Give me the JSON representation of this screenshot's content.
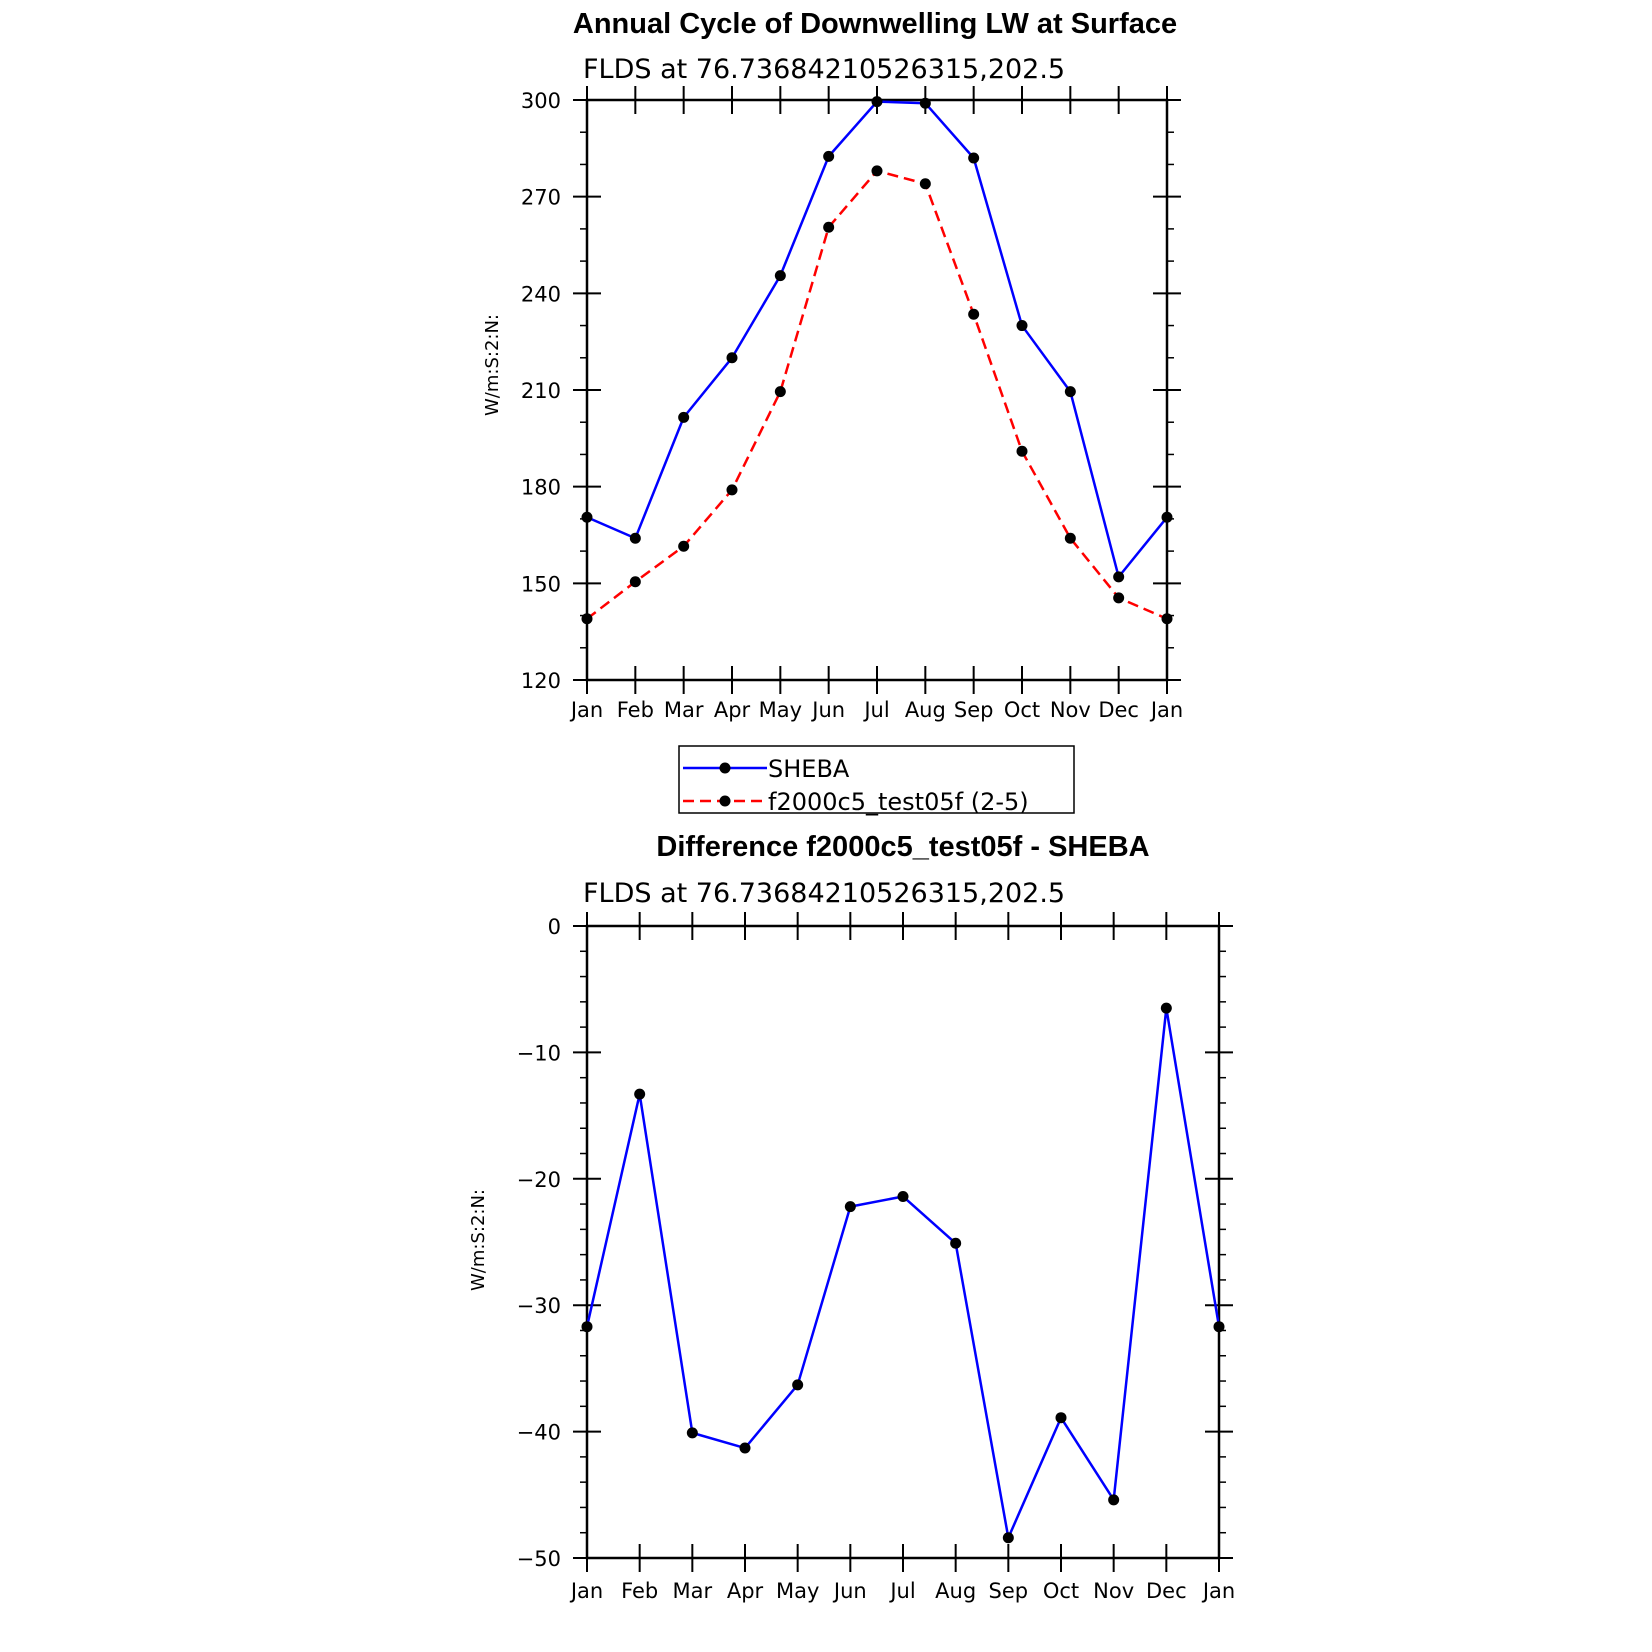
{
  "chart_data": [
    {
      "type": "line",
      "title": "Annual Cycle of Downwelling LW at Surface",
      "subtitle": "FLDS at 76.73684210526315,202.5",
      "ylabel": "W/m:S:2:N:",
      "categories": [
        "Jan",
        "Feb",
        "Mar",
        "Apr",
        "May",
        "Jun",
        "Jul",
        "Aug",
        "Sep",
        "Oct",
        "Nov",
        "Dec",
        "Jan"
      ],
      "ylim": [
        120,
        300
      ],
      "yticks": [
        120,
        150,
        180,
        210,
        240,
        270,
        300
      ],
      "ytick_labels": [
        "120",
        "150",
        "180",
        "210",
        "240",
        "270",
        "300"
      ],
      "series": [
        {
          "name": "SHEBA",
          "color": "#0000ff",
          "dash": "solid",
          "values": [
            170.5,
            164.0,
            201.5,
            220.0,
            245.5,
            282.5,
            299.5,
            299.0,
            282.0,
            230.0,
            209.5,
            152.0,
            170.5
          ]
        },
        {
          "name": "f2000c5_test05f (2-5)",
          "color": "#ff0000",
          "dash": "dashed",
          "values": [
            139.0,
            150.5,
            161.5,
            179.0,
            209.5,
            260.5,
            278.0,
            274.0,
            233.5,
            191.0,
            164.0,
            145.5,
            139.0
          ]
        }
      ],
      "legend": "below"
    },
    {
      "type": "line",
      "title": "Difference f2000c5_test05f - SHEBA",
      "subtitle": "FLDS at 76.73684210526315,202.5",
      "ylabel": "W/m:S:2:N:",
      "categories": [
        "Jan",
        "Feb",
        "Mar",
        "Apr",
        "May",
        "Jun",
        "Jul",
        "Aug",
        "Sep",
        "Oct",
        "Nov",
        "Dec",
        "Jan"
      ],
      "ylim": [
        -50,
        0
      ],
      "yticks": [
        -50,
        -40,
        -30,
        -20,
        -10,
        0
      ],
      "ytick_labels": [
        "−50",
        "−40",
        "−30",
        "−20",
        "−10",
        "0"
      ],
      "series": [
        {
          "color": "#0000ff",
          "dash": "solid",
          "values": [
            -31.7,
            -13.3,
            -40.1,
            -41.3,
            -36.3,
            -22.2,
            -21.4,
            -25.1,
            -48.4,
            -38.9,
            -45.4,
            -6.5,
            -31.7
          ]
        }
      ]
    }
  ]
}
